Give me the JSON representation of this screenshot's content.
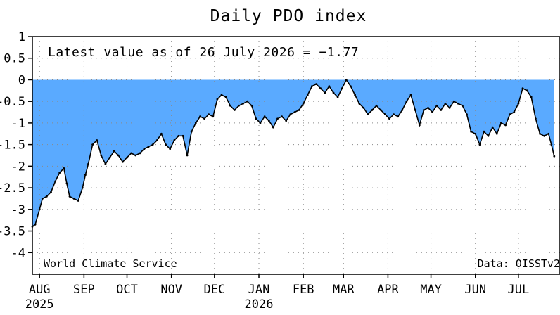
{
  "chart_data": {
    "type": "area",
    "title": "Daily PDO index",
    "annotation": "Latest value as of 26 July 2026 = −1.77",
    "credit_left": "World Climate Service",
    "credit_right": "Data: OISSTv2",
    "xlabel": "",
    "ylabel": "",
    "ylim": [
      -4.5,
      1
    ],
    "xlim": [
      "2025-07-27",
      "2026-07-30"
    ],
    "yticks": [
      1,
      0.5,
      0,
      -0.5,
      -1,
      -1.5,
      -2,
      -2.5,
      -3,
      -3.5,
      -4
    ],
    "ytick_labels": [
      "1",
      "0.5",
      "0",
      "-0.5",
      "-1",
      "-1.5",
      "-2",
      "-2.5",
      "-3",
      "-3.5",
      "-4"
    ],
    "months": [
      {
        "label": "AUG",
        "year": "2025",
        "date": "2025-08-01"
      },
      {
        "label": "SEP",
        "year": "",
        "date": "2025-09-01"
      },
      {
        "label": "OCT",
        "year": "",
        "date": "2025-10-01"
      },
      {
        "label": "NOV",
        "year": "",
        "date": "2025-11-01"
      },
      {
        "label": "DEC",
        "year": "",
        "date": "2025-12-01"
      },
      {
        "label": "JAN",
        "year": "2026",
        "date": "2026-01-01"
      },
      {
        "label": "FEB",
        "year": "",
        "date": "2026-02-01"
      },
      {
        "label": "MAR",
        "year": "",
        "date": "2026-03-01"
      },
      {
        "label": "APR",
        "year": "",
        "date": "2026-04-01"
      },
      {
        "label": "MAY",
        "year": "",
        "date": "2026-05-01"
      },
      {
        "label": "JUN",
        "year": "",
        "date": "2026-06-01"
      },
      {
        "label": "JUL",
        "year": "",
        "date": "2026-07-01"
      }
    ],
    "grid": true,
    "fill_color": "#5aaaff",
    "line_color": "#000000",
    "series": [
      {
        "name": "",
        "x": [
          "2025-07-27",
          "2025-07-29",
          "2025-08-01",
          "2025-08-03",
          "2025-08-06",
          "2025-08-09",
          "2025-08-12",
          "2025-08-15",
          "2025-08-18",
          "2025-08-20",
          "2025-08-22",
          "2025-08-25",
          "2025-08-28",
          "2025-08-31",
          "2025-09-02",
          "2025-09-04",
          "2025-09-07",
          "2025-09-10",
          "2025-09-13",
          "2025-09-16",
          "2025-09-19",
          "2025-09-22",
          "2025-09-25",
          "2025-09-28",
          "2025-10-01",
          "2025-10-04",
          "2025-10-07",
          "2025-10-10",
          "2025-10-13",
          "2025-10-16",
          "2025-10-19",
          "2025-10-22",
          "2025-10-25",
          "2025-10-28",
          "2025-10-31",
          "2025-11-03",
          "2025-11-06",
          "2025-11-09",
          "2025-11-12",
          "2025-11-15",
          "2025-11-18",
          "2025-11-21",
          "2025-11-24",
          "2025-11-27",
          "2025-11-30",
          "2025-12-03",
          "2025-12-06",
          "2025-12-09",
          "2025-12-12",
          "2025-12-15",
          "2025-12-18",
          "2025-12-21",
          "2025-12-24",
          "2025-12-27",
          "2025-12-30",
          "2026-01-02",
          "2026-01-05",
          "2026-01-08",
          "2026-01-11",
          "2026-01-14",
          "2026-01-17",
          "2026-01-20",
          "2026-01-23",
          "2026-01-26",
          "2026-01-29",
          "2026-02-01",
          "2026-02-04",
          "2026-02-07",
          "2026-02-10",
          "2026-02-13",
          "2026-02-16",
          "2026-02-19",
          "2026-02-22",
          "2026-02-25",
          "2026-02-28",
          "2026-03-03",
          "2026-03-06",
          "2026-03-09",
          "2026-03-12",
          "2026-03-15",
          "2026-03-18",
          "2026-03-21",
          "2026-03-24",
          "2026-03-27",
          "2026-03-30",
          "2026-04-02",
          "2026-04-05",
          "2026-04-08",
          "2026-04-11",
          "2026-04-14",
          "2026-04-17",
          "2026-04-20",
          "2026-04-23",
          "2026-04-26",
          "2026-04-29",
          "2026-05-02",
          "2026-05-05",
          "2026-05-08",
          "2026-05-11",
          "2026-05-14",
          "2026-05-17",
          "2026-05-20",
          "2026-05-23",
          "2026-05-26",
          "2026-05-29",
          "2026-06-01",
          "2026-06-04",
          "2026-06-07",
          "2026-06-10",
          "2026-06-13",
          "2026-06-16",
          "2026-06-19",
          "2026-06-22",
          "2026-06-25",
          "2026-06-28",
          "2026-07-01",
          "2026-07-04",
          "2026-07-07",
          "2026-07-10",
          "2026-07-13",
          "2026-07-16",
          "2026-07-19",
          "2026-07-22",
          "2026-07-24",
          "2026-07-26"
        ],
        "values": [
          -3.4,
          -3.35,
          -3.0,
          -2.75,
          -2.7,
          -2.6,
          -2.35,
          -2.15,
          -2.05,
          -2.4,
          -2.7,
          -2.75,
          -2.8,
          -2.5,
          -2.2,
          -1.95,
          -1.5,
          -1.4,
          -1.75,
          -1.95,
          -1.8,
          -1.65,
          -1.75,
          -1.9,
          -1.8,
          -1.7,
          -1.75,
          -1.7,
          -1.6,
          -1.55,
          -1.5,
          -1.4,
          -1.25,
          -1.5,
          -1.6,
          -1.4,
          -1.3,
          -1.3,
          -1.75,
          -1.2,
          -1.0,
          -0.85,
          -0.9,
          -0.8,
          -0.85,
          -0.45,
          -0.35,
          -0.4,
          -0.6,
          -0.7,
          -0.6,
          -0.55,
          -0.5,
          -0.6,
          -0.9,
          -1.0,
          -0.85,
          -0.95,
          -1.1,
          -0.9,
          -0.85,
          -0.95,
          -0.8,
          -0.75,
          -0.7,
          -0.55,
          -0.35,
          -0.15,
          -0.1,
          -0.2,
          -0.3,
          -0.15,
          -0.3,
          -0.4,
          -0.2,
          0.0,
          -0.15,
          -0.35,
          -0.55,
          -0.65,
          -0.8,
          -0.7,
          -0.6,
          -0.7,
          -0.8,
          -0.9,
          -0.8,
          -0.85,
          -0.7,
          -0.5,
          -0.35,
          -0.7,
          -1.05,
          -0.7,
          -0.65,
          -0.75,
          -0.6,
          -0.7,
          -0.55,
          -0.65,
          -0.5,
          -0.55,
          -0.6,
          -0.8,
          -1.2,
          -1.25,
          -1.5,
          -1.2,
          -1.3,
          -1.1,
          -1.25,
          -1.0,
          -1.05,
          -0.8,
          -0.75,
          -0.55,
          -0.2,
          -0.25,
          -0.4,
          -0.9,
          -1.25,
          -1.3,
          -1.25,
          -1.5,
          -1.77
        ]
      }
    ]
  }
}
